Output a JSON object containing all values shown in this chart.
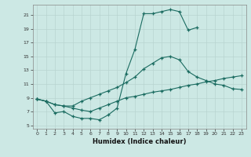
{
  "xlabel": "Humidex (Indice chaleur)",
  "xlim": [
    -0.5,
    23.5
  ],
  "ylim": [
    4.5,
    22.5
  ],
  "xticks": [
    0,
    1,
    2,
    3,
    4,
    5,
    6,
    7,
    8,
    9,
    10,
    11,
    12,
    13,
    14,
    15,
    16,
    17,
    18,
    19,
    20,
    21,
    22,
    23
  ],
  "yticks": [
    5,
    7,
    9,
    11,
    13,
    15,
    17,
    19,
    21
  ],
  "bg_color": "#cce8e4",
  "grid_color": "#b8d4d0",
  "line_color": "#1a6b60",
  "line1_x": [
    0,
    1,
    2,
    3,
    4,
    5,
    6,
    7,
    8,
    9,
    10,
    11,
    12,
    13,
    14,
    15,
    16,
    17,
    18
  ],
  "line1_y": [
    8.8,
    8.5,
    6.8,
    7.0,
    6.3,
    6.0,
    6.0,
    5.8,
    6.5,
    7.5,
    12.5,
    16.0,
    21.2,
    21.2,
    21.5,
    21.8,
    21.5,
    18.8,
    19.2
  ],
  "line2_x": [
    0,
    1,
    2,
    3,
    4,
    5,
    6,
    7,
    8,
    9,
    10,
    11,
    12,
    13,
    14,
    15,
    16,
    17,
    18,
    19,
    20,
    21,
    22,
    23
  ],
  "line2_y": [
    8.8,
    8.5,
    8.0,
    7.8,
    7.8,
    8.5,
    9.0,
    9.5,
    10.0,
    10.5,
    11.2,
    12.0,
    13.2,
    14.0,
    14.8,
    15.0,
    14.5,
    12.8,
    12.0,
    11.5,
    11.0,
    10.8,
    10.3,
    10.2
  ],
  "line3_x": [
    0,
    1,
    2,
    3,
    4,
    5,
    6,
    7,
    8,
    9,
    10,
    11,
    12,
    13,
    14,
    15,
    16,
    17,
    18,
    19,
    20,
    21,
    22,
    23
  ],
  "line3_y": [
    8.8,
    8.5,
    8.0,
    7.8,
    7.5,
    7.2,
    7.0,
    7.5,
    8.0,
    8.5,
    9.0,
    9.2,
    9.5,
    9.8,
    10.0,
    10.2,
    10.5,
    10.8,
    11.0,
    11.3,
    11.5,
    11.8,
    12.0,
    12.2
  ]
}
